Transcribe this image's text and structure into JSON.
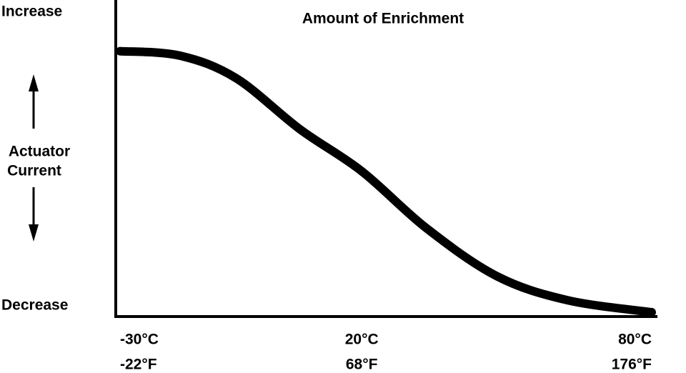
{
  "chart_data": {
    "type": "line",
    "title": "Amount of Enrichment",
    "y_label": [
      "Actuator",
      "Current"
    ],
    "xlim": [
      -30,
      80
    ],
    "xticks": [
      {
        "value": -30,
        "label": "-30°C"
      },
      {
        "value": 20,
        "label": "20°C"
      },
      {
        "value": 80,
        "label": "80°C"
      }
    ],
    "x2lim": [
      -22,
      176
    ],
    "x2ticks": [
      {
        "value": -22,
        "label": "-22°F"
      },
      {
        "value": 68,
        "label": "68°F"
      },
      {
        "value": 176,
        "label": "176°F"
      }
    ],
    "ylim": [
      0,
      1
    ],
    "yticks": [
      {
        "value": 0,
        "label": "Decrease"
      },
      {
        "value": 1,
        "label": "Increase"
      }
    ],
    "x": [
      -30,
      -17.6,
      -6,
      7.2,
      20,
      33.4,
      48,
      62.6,
      80
    ],
    "series": [
      {
        "color": "#000000",
        "values": [
          0.87,
          0.855,
          0.78,
          0.61,
          0.47,
          0.28,
          0.12,
          0.04,
          0
        ]
      }
    ]
  }
}
